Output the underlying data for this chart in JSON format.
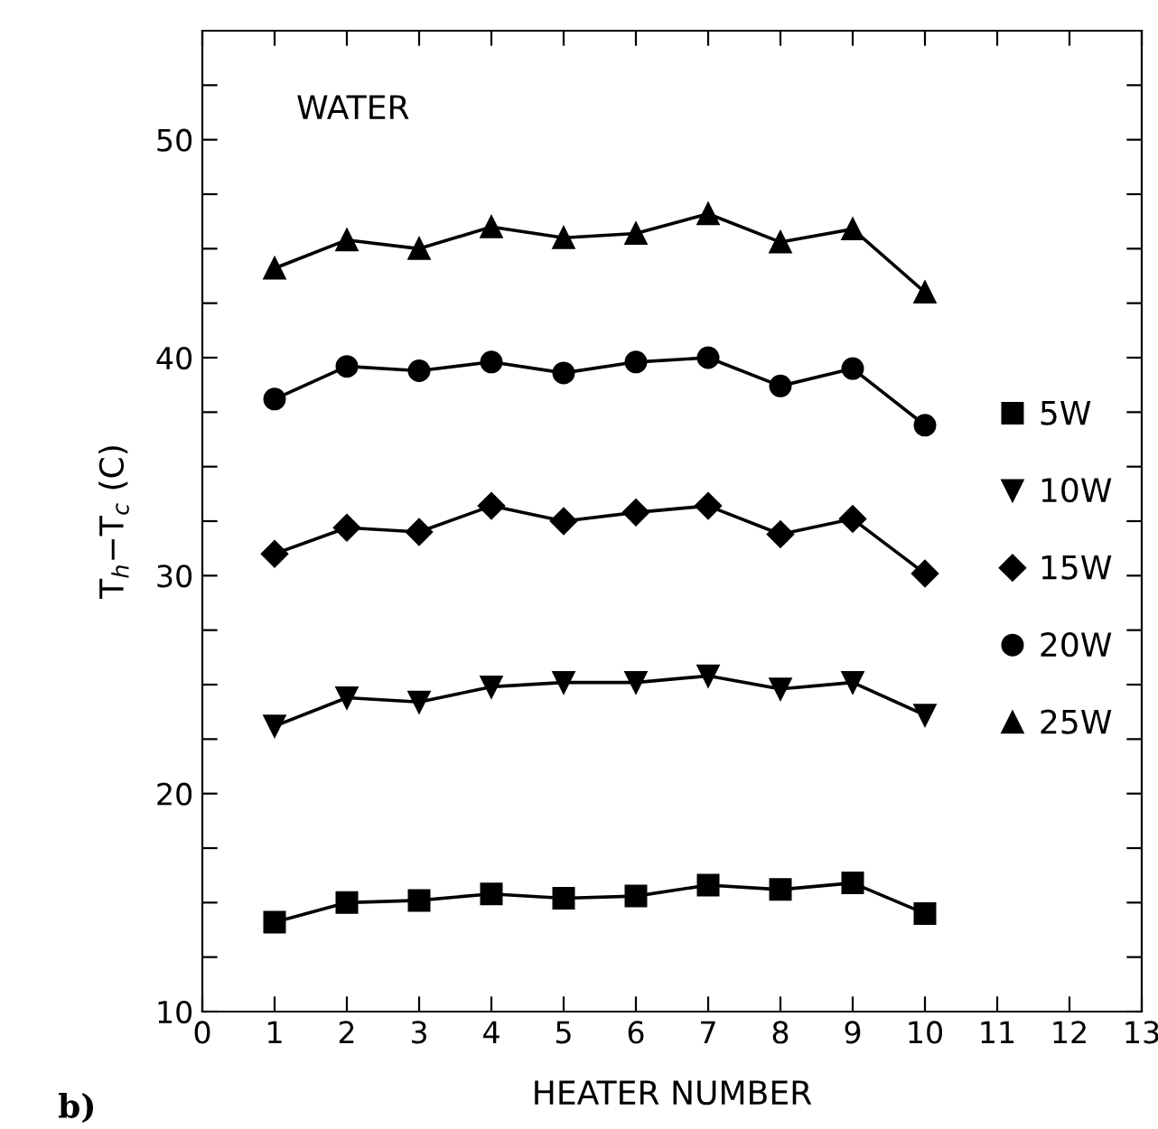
{
  "chart_data": {
    "type": "line",
    "xlabel": "HEATER NUMBER",
    "ylabel": "T$_{h}$−T$_{c}$ (C)",
    "annotations": [
      "WATER",
      "b)"
    ],
    "x": [
      1,
      2,
      3,
      4,
      5,
      6,
      7,
      8,
      9,
      10
    ],
    "series": [
      {
        "name": "5W",
        "color": "#000000",
        "marker": "square",
        "values": [
          14.1,
          15.0,
          15.1,
          15.4,
          15.2,
          15.3,
          15.8,
          15.6,
          15.9,
          14.5
        ]
      },
      {
        "name": "10W",
        "color": "#000000",
        "marker": "triangle_down",
        "values": [
          23.1,
          24.4,
          24.2,
          24.9,
          25.1,
          25.1,
          25.4,
          24.8,
          25.1,
          23.6
        ]
      },
      {
        "name": "15W",
        "color": "#000000",
        "marker": "diamond",
        "values": [
          31.0,
          32.2,
          32.0,
          33.2,
          32.5,
          32.9,
          33.2,
          31.9,
          32.6,
          30.1
        ]
      },
      {
        "name": "20W",
        "color": "#000000",
        "marker": "circle",
        "values": [
          38.1,
          39.6,
          39.4,
          39.8,
          39.3,
          39.8,
          40.0,
          38.7,
          39.5,
          36.9
        ]
      },
      {
        "name": "25W",
        "color": "#000000",
        "marker": "triangle",
        "values": [
          44.1,
          45.4,
          45.0,
          46.0,
          45.5,
          45.7,
          46.6,
          45.3,
          45.9,
          43.0
        ]
      }
    ],
    "xlim": [
      0,
      13
    ],
    "xticks": [
      0,
      1,
      2,
      3,
      4,
      5,
      6,
      7,
      8,
      9,
      10,
      11,
      12,
      13
    ],
    "ylim": [
      10,
      55
    ],
    "yticks": [
      10,
      {
        "value": 12.5,
        "label": null
      },
      {
        "value": 15,
        "label": null
      },
      {
        "value": 17.5,
        "label": null
      },
      20,
      {
        "value": 22.5,
        "label": null
      },
      {
        "value": 25,
        "label": null
      },
      {
        "value": 27.5,
        "label": null
      },
      30,
      {
        "value": 32.5,
        "label": null
      },
      {
        "value": 35,
        "label": null
      },
      {
        "value": 37.5,
        "label": null
      },
      40,
      {
        "value": 42.5,
        "label": null
      },
      {
        "value": 45,
        "label": null
      },
      {
        "value": 47.5,
        "label": null
      },
      50,
      {
        "value": 52.5,
        "label": null
      }
    ],
    "grid": false,
    "legend": "right",
    "line_style": "solid"
  }
}
